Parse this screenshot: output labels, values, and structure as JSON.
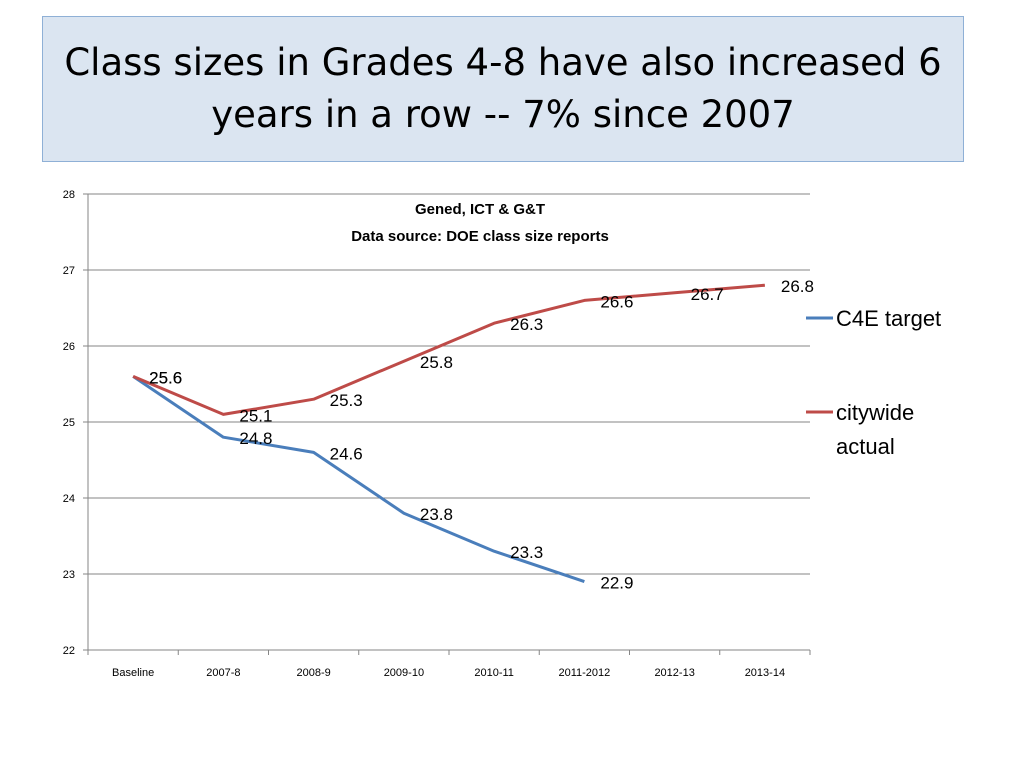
{
  "slide": {
    "title": "Class sizes  in Grades 4-8 have also increased 6 years in a row  -- 7% since 2007"
  },
  "chart_data": {
    "type": "line",
    "title_lines": [
      "Gened, ICT & G&T",
      "Data source: DOE class size reports"
    ],
    "categories": [
      "Baseline",
      "2007-8",
      "2008-9",
      "2009-10",
      "2010-11",
      "2011-2012",
      "2012-13",
      "2013-14"
    ],
    "ylim": [
      22,
      28
    ],
    "yticks": [
      22,
      23,
      24,
      25,
      26,
      27,
      28
    ],
    "grid": true,
    "legend_position": "right",
    "series": [
      {
        "name": "C4E target",
        "color": "#4a7ebb",
        "values": [
          25.6,
          24.8,
          24.6,
          23.8,
          23.3,
          22.9,
          null,
          null
        ],
        "labels": [
          "25.6",
          "24.8",
          "24.6",
          "23.8",
          "23.3",
          "22.9",
          "",
          ""
        ]
      },
      {
        "name": "citywide actual",
        "color": "#be4b48",
        "values": [
          25.6,
          25.1,
          25.3,
          25.8,
          26.3,
          26.6,
          26.7,
          26.8
        ],
        "labels": [
          "25.6",
          "25.1",
          "25.3",
          "25.8",
          "26.3",
          "26.6",
          "26.7",
          "26.8"
        ]
      }
    ]
  }
}
